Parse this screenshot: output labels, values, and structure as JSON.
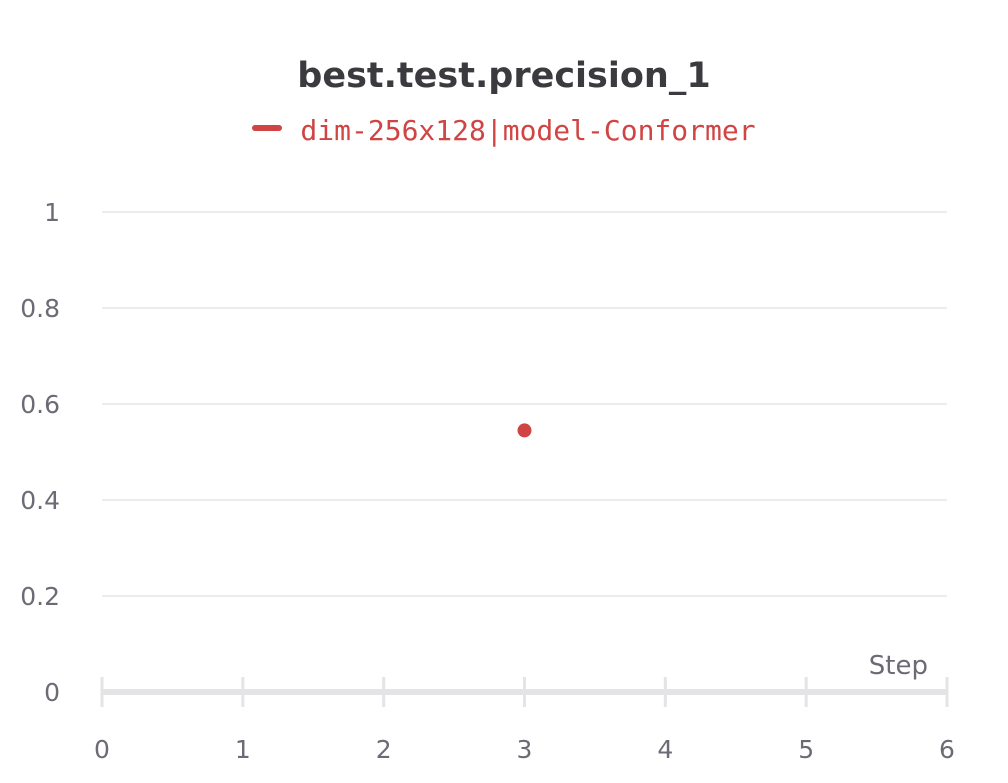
{
  "chart_data": {
    "type": "scatter",
    "title": "best.test.precision_1",
    "xlabel": "Step",
    "ylabel": "",
    "xlim": [
      0,
      6
    ],
    "ylim": [
      0,
      1
    ],
    "x_ticks": [
      "0",
      "1",
      "2",
      "3",
      "4",
      "5",
      "6"
    ],
    "y_ticks": [
      "0",
      "0.2",
      "0.4",
      "0.6",
      "0.8",
      "1"
    ],
    "grid": true,
    "legend_position": "top-center",
    "series": [
      {
        "name": "dim-256x128|model-Conformer",
        "color": "#d04444",
        "points": [
          {
            "x": 3,
            "y": 0.545
          }
        ]
      }
    ]
  }
}
